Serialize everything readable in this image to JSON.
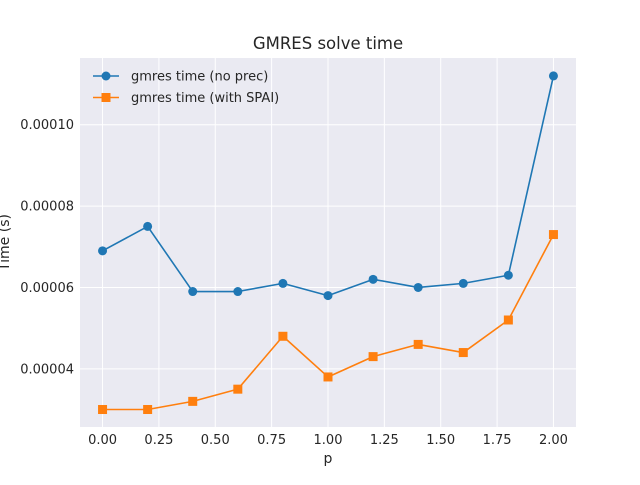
{
  "chart_data": {
    "type": "line",
    "title": "GMRES solve time",
    "xlabel": "p",
    "ylabel": "Time (s)",
    "xlim": [
      -0.1,
      2.1
    ],
    "ylim": [
      2.57e-05,
      0.0001164
    ],
    "xticks": [
      0.0,
      0.25,
      0.5,
      0.75,
      1.0,
      1.25,
      1.5,
      1.75,
      2.0
    ],
    "xtick_labels": [
      "0.00",
      "0.25",
      "0.50",
      "0.75",
      "1.00",
      "1.25",
      "1.50",
      "1.75",
      "2.00"
    ],
    "yticks": [
      4e-05,
      6e-05,
      8e-05,
      0.0001
    ],
    "ytick_labels": [
      "0.00004",
      "0.00006",
      "0.00008",
      "0.00010"
    ],
    "grid": true,
    "legend_position": "upper-left",
    "x": [
      0.0,
      0.2,
      0.4,
      0.6,
      0.8,
      1.0,
      1.2,
      1.4,
      1.6,
      1.8,
      2.0
    ],
    "series": [
      {
        "name": "gmres time (no prec)",
        "color": "#1f77b4",
        "marker": "circle",
        "values": [
          6.9e-05,
          7.5e-05,
          5.9e-05,
          5.9e-05,
          6.1e-05,
          5.8e-05,
          6.2e-05,
          6e-05,
          6.1e-05,
          6.3e-05,
          0.000112
        ]
      },
      {
        "name": "gmres time (with SPAI)",
        "color": "#ff7f0e",
        "marker": "square",
        "values": [
          3e-05,
          3e-05,
          3.2e-05,
          3.5e-05,
          4.8e-05,
          3.8e-05,
          4.3e-05,
          4.6e-05,
          4.4e-05,
          5.2e-05,
          7.3e-05
        ]
      }
    ],
    "style": {
      "plot_background": "#eaeaf2",
      "grid_color": "#ffffff"
    }
  }
}
